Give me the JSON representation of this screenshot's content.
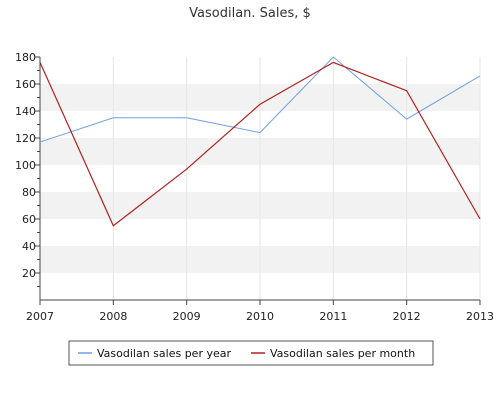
{
  "chart_data": {
    "type": "line",
    "title": "Vasodilan. Sales, $",
    "xlabel": "",
    "ylabel": "",
    "x": [
      "2007",
      "2008",
      "2009",
      "2010",
      "2011",
      "2012",
      "2013"
    ],
    "ylim": [
      0,
      180
    ],
    "yticks": [
      "20",
      "40",
      "60",
      "80",
      "100",
      "120",
      "140",
      "160",
      "180"
    ],
    "grid": "alternating horizontal bands",
    "legend_position": "bottom",
    "series": [
      {
        "name": "Vasodilan sales per year",
        "color": "#6f9fe6",
        "values": [
          117,
          135,
          135,
          124,
          180,
          134,
          166
        ]
      },
      {
        "name": "Vasodilan sales per month",
        "color": "#b22222",
        "values": [
          176,
          55,
          97,
          145,
          176,
          155,
          60
        ]
      }
    ]
  }
}
